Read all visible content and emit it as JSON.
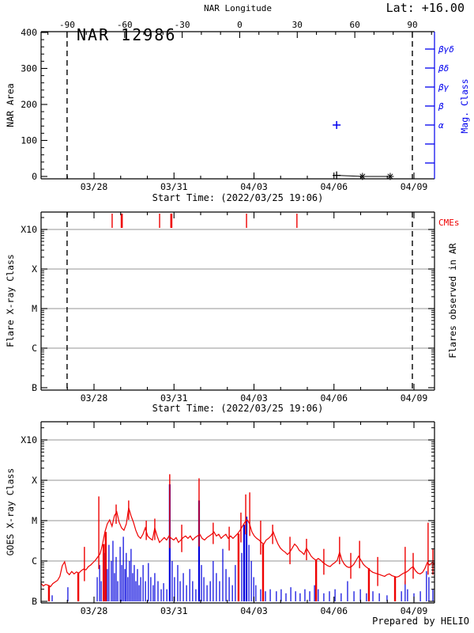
{
  "header": {
    "lat_label": "Lat: +16.00",
    "ar_title": "NAR 12986"
  },
  "footer": {
    "credit": "Prepared by HELIO"
  },
  "colors": {
    "axis_black": "#000000",
    "mag_axis_blue": "#0000ee",
    "series_blue": "#0000dd",
    "series_red": "#ee0000",
    "grid_gray": "#aaaaaa",
    "background": "#ffffff"
  },
  "chart_data": {
    "time_axis": {
      "xlabel": "Start Time: (2022/03/25 19:06)",
      "ticks": [
        {
          "d": 2,
          "label": "03/28"
        },
        {
          "d": 5,
          "label": "03/31"
        },
        {
          "d": 8,
          "label": "04/03"
        },
        {
          "d": 11,
          "label": "04/06"
        },
        {
          "d": 14,
          "label": "04/09"
        }
      ],
      "minor_step_d": 1,
      "range_d": [
        0,
        14.77
      ],
      "limb_crossings_d": [
        0.99,
        13.94
      ]
    },
    "panel1": {
      "type": "scatter",
      "title": "NAR 12986",
      "lat_label": "Lat: +16.00",
      "top_axis": {
        "label": "NAR Longitude",
        "ticks": [
          -90,
          -60,
          -30,
          0,
          30,
          60,
          90
        ],
        "minor_step_deg": 10
      },
      "ylabel": "NAR Area",
      "ylim": [
        0,
        400
      ],
      "y_ticks": [
        0,
        100,
        200,
        300,
        400
      ],
      "y_minor_step": 20,
      "right_axis": {
        "label": "Mag. Class",
        "categories": [
          "βγδ",
          "βδ",
          "βγ",
          "β",
          "α"
        ],
        "n_tick_slots": 7
      },
      "area_points": [
        {
          "d": 11.1,
          "area": 3,
          "marker": "plus"
        },
        {
          "d": 12.07,
          "area": 0,
          "marker": "asterisk"
        },
        {
          "d": 13.11,
          "area": 0,
          "marker": "asterisk"
        }
      ],
      "mag_points": [
        {
          "d": 11.1,
          "mag_class": "α"
        }
      ]
    },
    "panel2": {
      "type": "event-timeline",
      "ylabel": "Flare X-ray Class",
      "right_label": "Flares observed in AR",
      "cme_label": "CMEs",
      "y_levels": [
        "B",
        "C",
        "M",
        "X",
        "X10"
      ],
      "cmes": [
        {
          "d": 2.68,
          "strong": false
        },
        {
          "d": 3.04,
          "strong": true
        },
        {
          "d": 4.46,
          "strong": false
        },
        {
          "d": 4.9,
          "strong": true
        },
        {
          "d": 7.72,
          "strong": false
        },
        {
          "d": 9.61,
          "strong": false
        }
      ],
      "flares": []
    },
    "panel3": {
      "type": "line",
      "ylabel": "GOES X-ray Class",
      "y_levels": [
        "B",
        "C",
        "M",
        "X",
        "X10"
      ],
      "flux_units": "decades above B (B=1e-7 W/m^2)",
      "flux": {
        "d_start": 0.01,
        "d_step": 0.0889,
        "values": [
          0.45,
          0.38,
          0.42,
          0.4,
          0.36,
          0.44,
          0.48,
          0.52,
          0.62,
          0.88,
          0.98,
          0.72,
          0.66,
          0.74,
          0.68,
          0.73,
          0.7,
          0.76,
          0.8,
          0.78,
          0.86,
          0.9,
          0.96,
          1.02,
          1.1,
          1.18,
          1.42,
          1.72,
          1.92,
          2.02,
          1.86,
          2.12,
          2.22,
          1.96,
          1.82,
          1.76,
          1.92,
          2.32,
          2.12,
          1.96,
          1.76,
          1.62,
          1.56,
          1.66,
          1.82,
          1.62,
          1.56,
          1.52,
          1.82,
          1.62,
          1.46,
          1.52,
          1.58,
          1.52,
          1.62,
          1.56,
          1.52,
          1.58,
          1.46,
          1.52,
          1.58,
          1.62,
          1.56,
          1.62,
          1.52,
          1.58,
          1.62,
          1.66,
          1.56,
          1.52,
          1.58,
          1.62,
          1.66,
          1.72,
          1.62,
          1.66,
          1.56,
          1.62,
          1.66,
          1.56,
          1.62,
          1.56,
          1.62,
          1.68,
          1.76,
          1.86,
          1.96,
          2.02,
          1.92,
          1.72,
          1.62,
          1.56,
          1.52,
          1.46,
          1.42,
          1.52,
          1.56,
          1.62,
          1.72,
          1.56,
          1.42,
          1.32,
          1.26,
          1.22,
          1.16,
          1.22,
          1.32,
          1.42,
          1.36,
          1.26,
          1.22,
          1.16,
          1.32,
          1.22,
          1.12,
          1.06,
          1.02,
          1.06,
          1.02,
          0.96,
          0.92,
          0.88,
          0.86,
          0.92,
          0.96,
          1.02,
          1.22,
          1.02,
          0.92,
          0.86,
          0.84,
          0.86,
          0.92,
          1.02,
          1.12,
          1.02,
          0.92,
          0.86,
          0.82,
          0.76,
          0.72,
          0.7,
          0.68,
          0.66,
          0.64,
          0.62,
          0.66,
          0.68,
          0.64,
          0.62,
          0.6,
          0.62,
          0.66,
          0.7,
          0.72,
          0.76,
          0.82,
          0.86,
          0.76,
          0.7,
          0.68,
          0.72,
          0.82,
          0.96,
          0.9,
          0.96,
          0.92
        ]
      },
      "red_spikes": [
        [
          1.64,
          1.35
        ],
        [
          2.18,
          2.6
        ],
        [
          2.83,
          2.4
        ],
        [
          3.3,
          2.5
        ],
        [
          3.96,
          2.0
        ],
        [
          4.28,
          2.05
        ],
        [
          4.84,
          3.15
        ],
        [
          5.29,
          1.9
        ],
        [
          5.94,
          3.05
        ],
        [
          6.47,
          1.95
        ],
        [
          7.07,
          1.85
        ],
        [
          7.51,
          2.2
        ],
        [
          7.69,
          2.65
        ],
        [
          7.84,
          2.7
        ],
        [
          8.25,
          2.0
        ],
        [
          8.7,
          1.9
        ],
        [
          9.35,
          1.6
        ],
        [
          9.97,
          1.55
        ],
        [
          10.62,
          1.3
        ],
        [
          11.21,
          1.6
        ],
        [
          11.63,
          1.2
        ],
        [
          11.96,
          1.5
        ],
        [
          12.64,
          1.1
        ],
        [
          13.67,
          1.35
        ],
        [
          13.97,
          1.2
        ],
        [
          14.53,
          1.95
        ],
        [
          14.71,
          1.3
        ]
      ],
      "dropouts_d": [
        0.31,
        1.41,
        2.36,
        2.44,
        7.42,
        8.34,
        10.33,
        12.31,
        13.29
      ],
      "blue_spikes": [
        [
          0.43,
          0.15
        ],
        [
          1.02,
          0.35
        ],
        [
          2.12,
          0.6
        ],
        [
          2.21,
          0.9
        ],
        [
          2.27,
          0.5
        ],
        [
          2.41,
          1.2
        ],
        [
          2.5,
          0.8
        ],
        [
          2.56,
          1.4
        ],
        [
          2.65,
          1.0
        ],
        [
          2.71,
          1.5
        ],
        [
          2.77,
          0.7
        ],
        [
          2.83,
          1.1
        ],
        [
          2.89,
          0.5
        ],
        [
          2.98,
          1.35
        ],
        [
          3.04,
          0.9
        ],
        [
          3.1,
          1.6
        ],
        [
          3.16,
          0.8
        ],
        [
          3.21,
          1.2
        ],
        [
          3.27,
          0.6
        ],
        [
          3.33,
          1.0
        ],
        [
          3.39,
          1.3
        ],
        [
          3.45,
          0.7
        ],
        [
          3.51,
          0.9
        ],
        [
          3.57,
          0.5
        ],
        [
          3.63,
          0.8
        ],
        [
          3.69,
          0.4
        ],
        [
          3.75,
          0.6
        ],
        [
          3.84,
          0.9
        ],
        [
          3.93,
          0.5
        ],
        [
          4.04,
          0.95
        ],
        [
          4.13,
          0.6
        ],
        [
          4.22,
          0.4
        ],
        [
          4.28,
          0.7
        ],
        [
          4.4,
          0.5
        ],
        [
          4.52,
          0.3
        ],
        [
          4.61,
          0.45
        ],
        [
          4.73,
          0.3
        ],
        [
          4.84,
          2.9
        ],
        [
          4.93,
          1.0
        ],
        [
          5.02,
          0.6
        ],
        [
          5.14,
          0.9
        ],
        [
          5.23,
          0.5
        ],
        [
          5.35,
          0.7
        ],
        [
          5.47,
          0.4
        ],
        [
          5.59,
          0.8
        ],
        [
          5.7,
          0.5
        ],
        [
          5.82,
          0.3
        ],
        [
          5.94,
          2.5
        ],
        [
          6.03,
          0.9
        ],
        [
          6.12,
          0.6
        ],
        [
          6.24,
          0.4
        ],
        [
          6.36,
          0.5
        ],
        [
          6.47,
          1.0
        ],
        [
          6.59,
          0.7
        ],
        [
          6.71,
          0.5
        ],
        [
          6.83,
          1.3
        ],
        [
          6.95,
          0.8
        ],
        [
          7.07,
          0.6
        ],
        [
          7.19,
          0.4
        ],
        [
          7.3,
          0.9
        ],
        [
          7.42,
          0.5
        ],
        [
          7.54,
          1.2
        ],
        [
          7.63,
          1.9
        ],
        [
          7.72,
          2.1
        ],
        [
          7.81,
          1.4
        ],
        [
          7.9,
          1.0
        ],
        [
          7.99,
          0.6
        ],
        [
          8.07,
          0.4
        ],
        [
          8.25,
          0.3
        ],
        [
          8.43,
          0.25
        ],
        [
          8.61,
          0.3
        ],
        [
          8.84,
          0.25
        ],
        [
          9.02,
          0.3
        ],
        [
          9.2,
          0.2
        ],
        [
          9.38,
          0.35
        ],
        [
          9.56,
          0.25
        ],
        [
          9.73,
          0.2
        ],
        [
          9.91,
          0.3
        ],
        [
          10.09,
          0.25
        ],
        [
          10.27,
          0.4
        ],
        [
          10.41,
          0.3
        ],
        [
          10.62,
          0.2
        ],
        [
          10.83,
          0.25
        ],
        [
          11.04,
          0.3
        ],
        [
          11.27,
          0.2
        ],
        [
          11.51,
          0.5
        ],
        [
          11.75,
          0.25
        ],
        [
          11.99,
          0.3
        ],
        [
          12.22,
          0.2
        ],
        [
          12.46,
          0.25
        ],
        [
          12.7,
          0.2
        ],
        [
          12.99,
          0.15
        ],
        [
          13.29,
          0.2
        ],
        [
          13.53,
          0.25
        ],
        [
          13.67,
          0.5
        ],
        [
          13.76,
          0.3
        ],
        [
          14.0,
          0.2
        ],
        [
          14.24,
          0.25
        ],
        [
          14.47,
          0.75
        ],
        [
          14.56,
          0.6
        ],
        [
          14.71,
          0.3
        ]
      ]
    }
  }
}
